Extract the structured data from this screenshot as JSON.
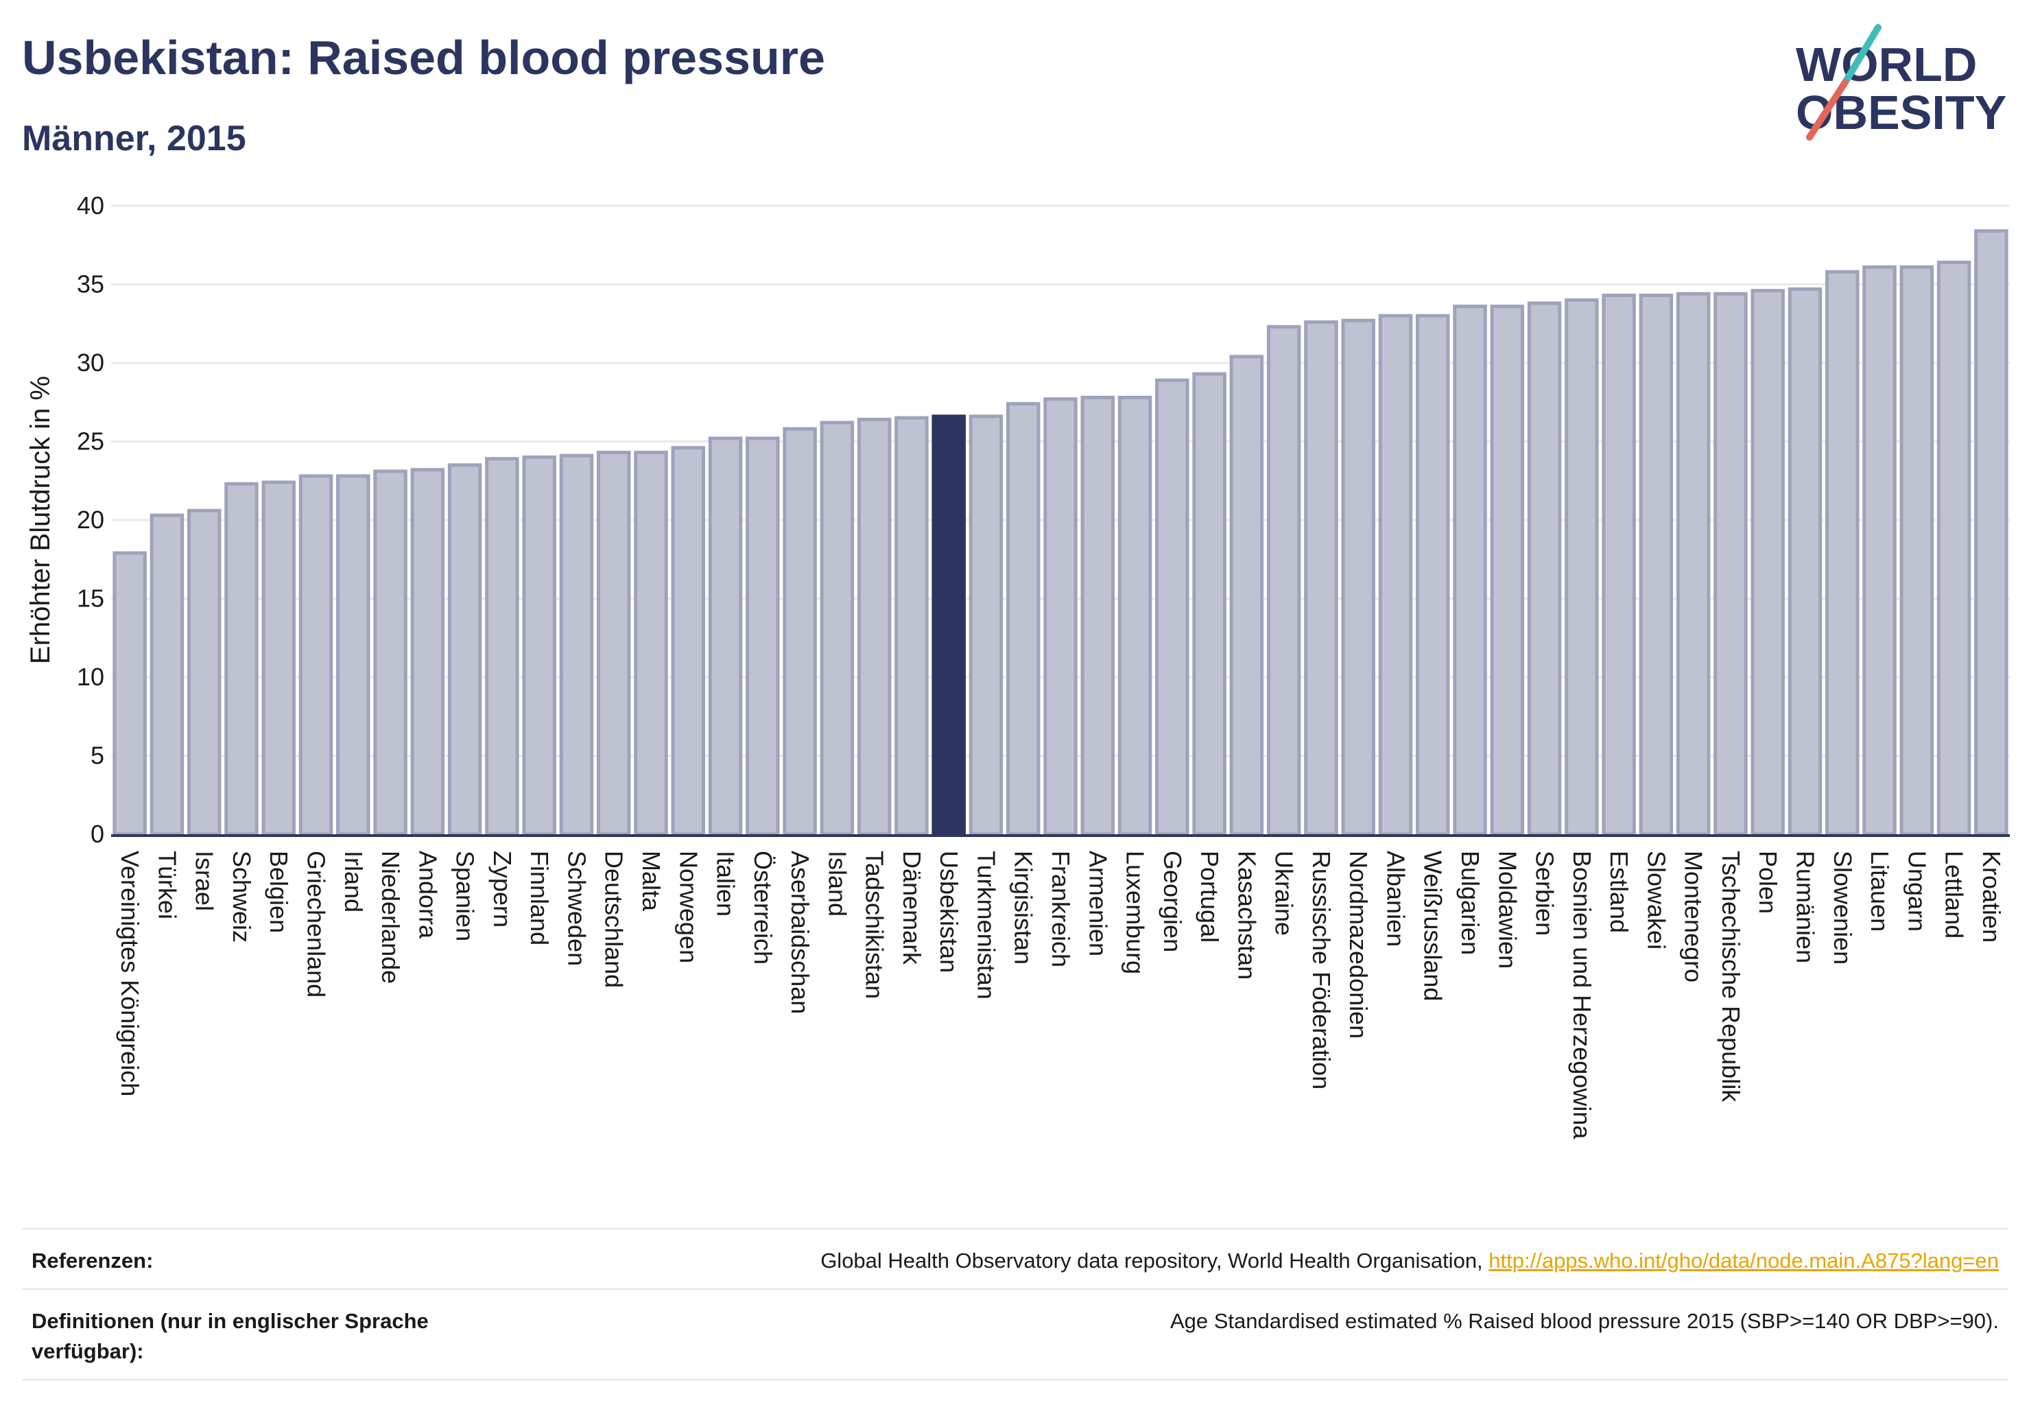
{
  "header": {
    "title": "Usbekistan: Raised blood pressure",
    "subtitle": "Männer, 2015"
  },
  "logo": {
    "line1": "WORLD",
    "line2": "OBESITY",
    "accent_colors": [
      "#3fbdb8",
      "#e5675c"
    ]
  },
  "colors": {
    "bar": "#bfc2d1",
    "bar_stroke": "#9ea3bb",
    "highlight": "#2b3560",
    "axis": "#2b3560",
    "grid": "#e8e8ee"
  },
  "chart_data": {
    "type": "bar",
    "ylabel": "Erhöhter Blutdruck in %",
    "ylim": [
      0,
      40
    ],
    "yticks": [
      0,
      5,
      10,
      15,
      20,
      25,
      30,
      35,
      40
    ],
    "grid": true,
    "highlight_category": "Usbekistan",
    "categories": [
      "Vereinigtes Königreich",
      "Türkei",
      "Israel",
      "Schweiz",
      "Belgien",
      "Griechenland",
      "Irland",
      "Niederlande",
      "Andorra",
      "Spanien",
      "Zypern",
      "Finnland",
      "Schweden",
      "Deutschland",
      "Malta",
      "Norwegen",
      "Italien",
      "Österreich",
      "Aserbaidschan",
      "Island",
      "Tadschikistan",
      "Dänemark",
      "Usbekistan",
      "Turkmenistan",
      "Kirgisistan",
      "Frankreich",
      "Armenien",
      "Luxemburg",
      "Georgien",
      "Portugal",
      "Kasachstan",
      "Ukraine",
      "Russische Föderation",
      "Nordmazedonien",
      "Albanien",
      "Weißrussland",
      "Bulgarien",
      "Moldawien",
      "Serbien",
      "Bosnien und Herzegowina",
      "Estland",
      "Slowakei",
      "Montenegro",
      "Tschechische Republik",
      "Polen",
      "Rumänien",
      "Slowenien",
      "Litauen",
      "Ungarn",
      "Lettland",
      "Kroatien"
    ],
    "values": [
      17.9,
      20.3,
      20.6,
      22.3,
      22.4,
      22.8,
      22.8,
      23.1,
      23.2,
      23.5,
      23.9,
      24.0,
      24.1,
      24.3,
      24.3,
      24.6,
      25.2,
      25.2,
      25.8,
      26.2,
      26.4,
      26.5,
      26.6,
      26.6,
      27.4,
      27.7,
      27.8,
      27.8,
      28.9,
      29.3,
      30.4,
      32.3,
      32.6,
      32.7,
      33.0,
      33.0,
      33.6,
      33.6,
      33.8,
      34.0,
      34.3,
      34.3,
      34.4,
      34.4,
      34.6,
      34.7,
      35.8,
      36.1,
      36.1,
      36.4,
      38.4
    ]
  },
  "footer": {
    "references_label": "Referenzen:",
    "references_text": "Global Health Observatory data repository, World Health Organisation, ",
    "references_link": "http://apps.who.int/gho/data/node.main.A875?lang=en",
    "definitions_label": "Definitionen (nur in englischer Sprache verfügbar):",
    "definitions_text": "Age Standardised estimated % Raised blood pressure 2015 (SBP>=140 OR DBP>=90)."
  }
}
